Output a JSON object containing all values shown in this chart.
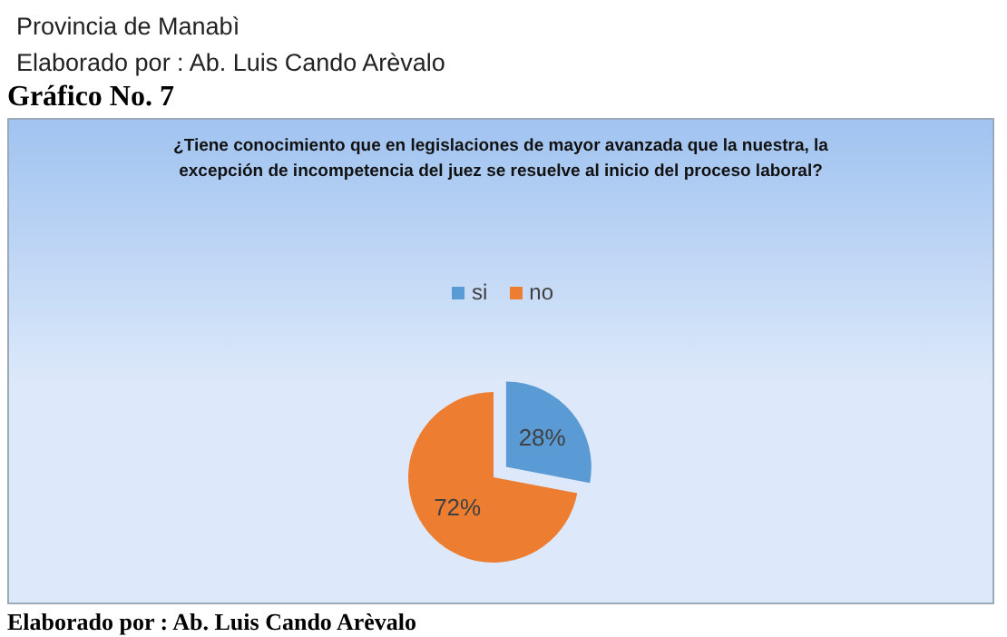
{
  "chart_data": {
    "type": "pie",
    "title": "¿Tiene conocimiento que en legislaciones de mayor avanzada que la nuestra, la excepción de incompetencia del juez se resuelve al inicio del proceso laboral?",
    "annotations": [
      "Provincia de Manabì",
      "Elaborado por : Ab. Luis Cando Arèvalo",
      "Gráfico No. 7",
      "Elaborado por : Ab. Luis Cando Arèvalo"
    ],
    "categories": [
      "si",
      "no"
    ],
    "values": [
      28,
      72
    ],
    "colors": [
      "#5b9bd5",
      "#ed7d31"
    ],
    "value_labels": [
      "28%",
      "72%"
    ],
    "legend": "top"
  }
}
